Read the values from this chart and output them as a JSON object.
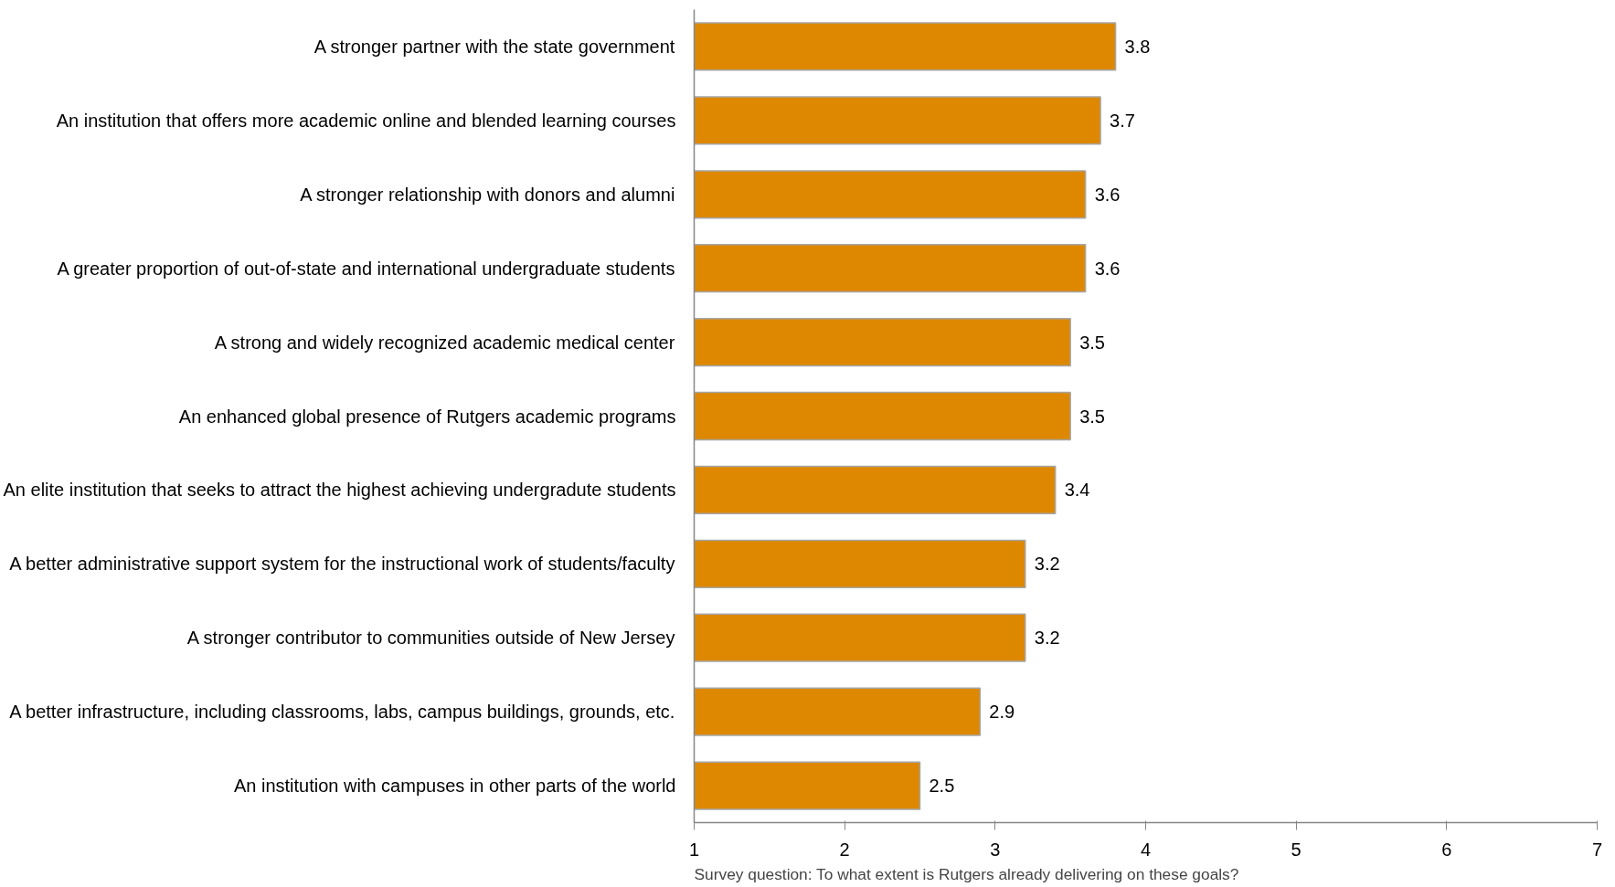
{
  "chart_data": {
    "type": "bar",
    "orientation": "horizontal",
    "categories": [
      "A stronger partner with the state government",
      "An institution that offers more academic online and blended learning courses",
      "A stronger relationship with donors and alumni",
      "A greater proportion of out-of-state and international undergraduate students",
      "A strong and widely recognized academic medical center",
      "An enhanced global presence of Rutgers academic programs",
      "An elite institution that seeks to attract the highest achieving undergradute students",
      "A better administrative support system for the instructional work of students/faculty",
      "A stronger contributor to communities outside of New Jersey",
      "A better infrastructure, including classrooms, labs, campus buildings, grounds, etc.",
      "An institution with campuses in other parts of the world"
    ],
    "values": [
      3.8,
      3.7,
      3.6,
      3.6,
      3.5,
      3.5,
      3.4,
      3.2,
      3.2,
      2.9,
      2.5
    ],
    "color": "#dd8800",
    "xlim": [
      1,
      7
    ],
    "xticks": [
      1,
      2,
      3,
      4,
      5,
      6,
      7
    ],
    "data_labels": true,
    "grid": false,
    "annotations": [
      "Survey question: To what extent is Rutgers already delivering on these goals?"
    ]
  }
}
